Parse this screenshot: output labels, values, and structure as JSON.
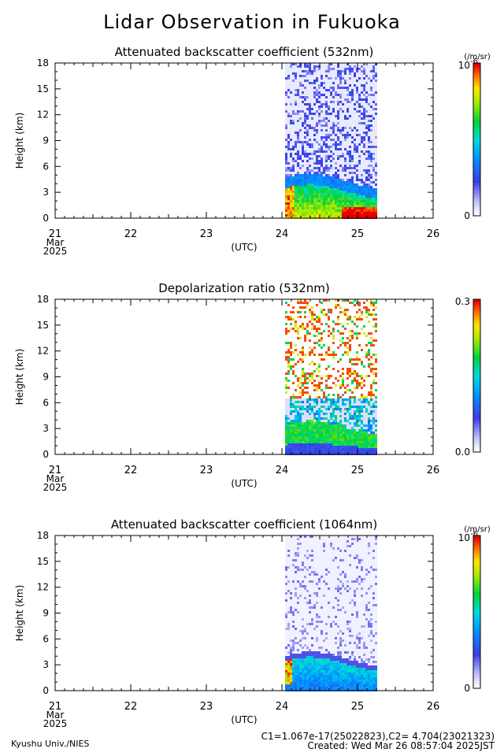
{
  "title": "Lidar Observation in Fukuoka",
  "chart_data": [
    {
      "type": "heatmap",
      "title": "Attenuated backscatter coefficient (532nm)",
      "ylabel": "Height (km)",
      "x_ticks": [
        "21",
        "22",
        "23",
        "24",
        "25",
        "26"
      ],
      "x_sub": [
        "Mar",
        "2025"
      ],
      "x_unit": "(UTC)",
      "y_ticks": [
        "0",
        "3",
        "6",
        "9",
        "12",
        "15",
        "18"
      ],
      "ylim": [
        0,
        18
      ],
      "xlim": [
        "2025-03-21",
        "2025-03-26"
      ],
      "data_window": [
        "2025-03-24 01:00",
        "2025-03-25 06:00"
      ],
      "colorbar": {
        "min_label": "0",
        "max_label": "10",
        "max_exp": "-6",
        "unit": "(/m/sr)"
      },
      "colormap": "rainbow"
    },
    {
      "type": "heatmap",
      "title": "Depolarization ratio (532nm)",
      "ylabel": "Height (km)",
      "x_ticks": [
        "21",
        "22",
        "23",
        "24",
        "25",
        "26"
      ],
      "x_sub": [
        "Mar",
        "2025"
      ],
      "x_unit": "(UTC)",
      "y_ticks": [
        "0",
        "3",
        "6",
        "9",
        "12",
        "15",
        "18"
      ],
      "ylim": [
        0,
        18
      ],
      "xlim": [
        "2025-03-21",
        "2025-03-26"
      ],
      "data_window": [
        "2025-03-24 01:00",
        "2025-03-25 06:00"
      ],
      "colorbar": {
        "min_label": "0.0",
        "max_label": "0.3",
        "max_exp": "",
        "unit": ""
      },
      "colormap": "rainbow"
    },
    {
      "type": "heatmap",
      "title": "Attenuated backscatter coefficient (1064nm)",
      "ylabel": "Height (km)",
      "x_ticks": [
        "21",
        "22",
        "23",
        "24",
        "25",
        "26"
      ],
      "x_sub": [
        "Mar",
        "2025"
      ],
      "x_unit": "(UTC)",
      "y_ticks": [
        "0",
        "3",
        "6",
        "9",
        "12",
        "15",
        "18"
      ],
      "ylim": [
        0,
        18
      ],
      "xlim": [
        "2025-03-21",
        "2025-03-26"
      ],
      "data_window": [
        "2025-03-24 01:00",
        "2025-03-25 06:00"
      ],
      "colorbar": {
        "min_label": "0",
        "max_label": "10",
        "max_exp": "-6",
        "unit": "(/m/sr)"
      },
      "colormap": "rainbow"
    }
  ],
  "footer": {
    "left": "Kyushu Univ./NIES",
    "calibration": "C1=1.067e-17(25022823),C2= 4.704(23021323)",
    "created": "Created: Wed Mar 26 08:57:04 2025JST"
  }
}
